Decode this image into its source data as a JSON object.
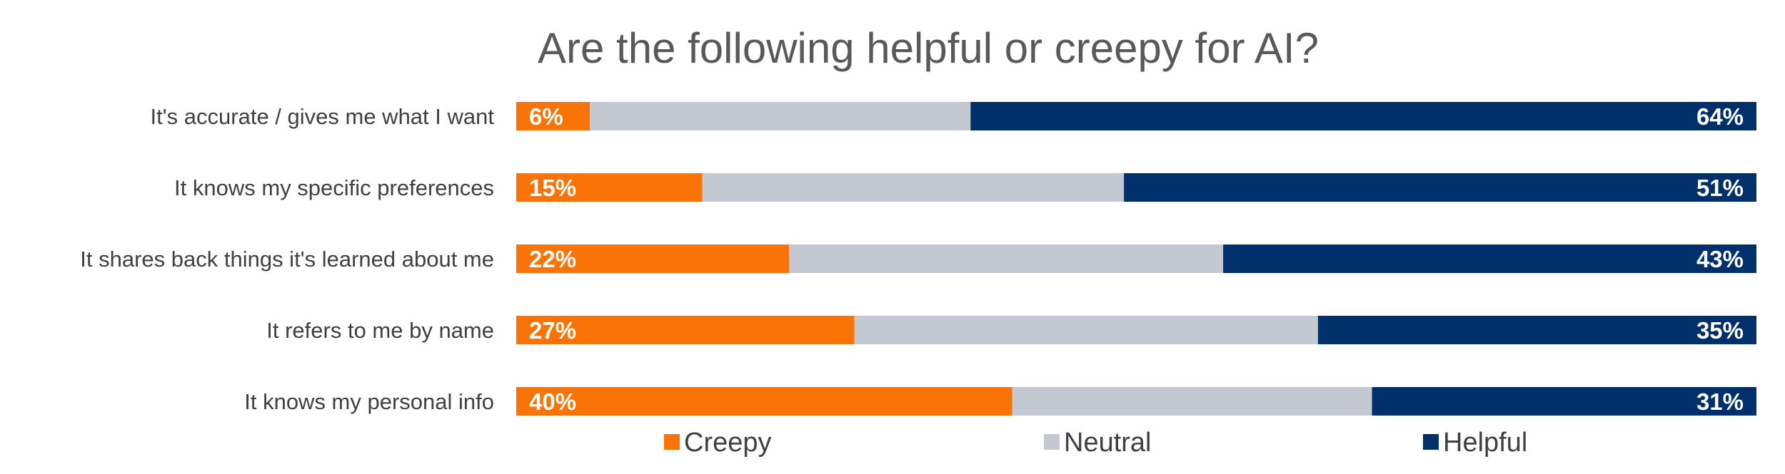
{
  "chart_data": {
    "type": "bar",
    "orientation": "horizontal",
    "stacked": true,
    "normalized_to_percent": true,
    "title": "Are the following helpful or creepy for AI?",
    "categories": [
      "It's accurate / gives me what I want",
      "It knows my specific preferences",
      "It shares back things it's learned about me",
      "It refers to me by name",
      "It knows my personal info"
    ],
    "series": [
      {
        "name": "Creepy",
        "color": "#F97306",
        "values": [
          6,
          15,
          22,
          27,
          40
        ],
        "labels": [
          "6%",
          "15%",
          "22%",
          "27%",
          "40%"
        ]
      },
      {
        "name": "Neutral",
        "color": "#C4C9D1",
        "values": [
          31,
          34,
          35,
          37,
          29
        ]
      },
      {
        "name": "Helpful",
        "color": "#00306B",
        "values": [
          64,
          51,
          43,
          35,
          31
        ],
        "labels": [
          "64%",
          "51%",
          "43%",
          "35%",
          "31%"
        ]
      }
    ],
    "xlim": [
      0,
      100
    ],
    "grid": false,
    "legend_position": "bottom"
  }
}
